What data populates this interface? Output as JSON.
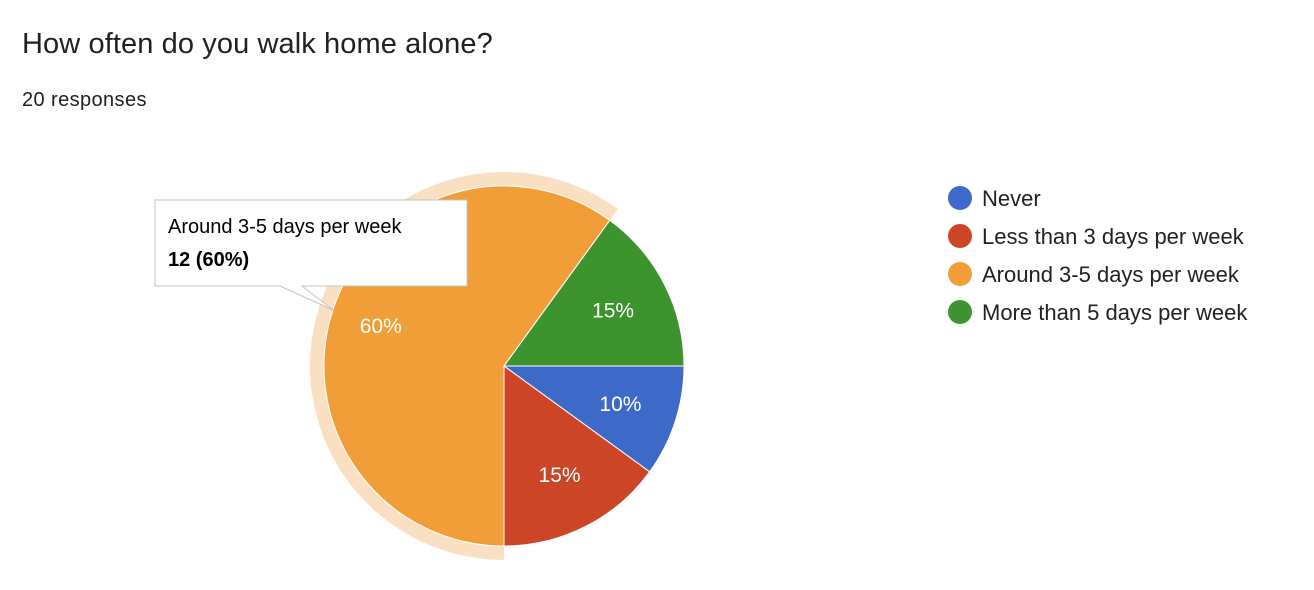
{
  "header": {
    "title": "How often do you walk home alone?",
    "responses": "20 responses"
  },
  "chart_data": {
    "type": "pie",
    "categories": [
      "Never",
      "Less than 3 days per week",
      "Around 3-5 days per week",
      "More than 5 days per week"
    ],
    "values": [
      2,
      3,
      12,
      3
    ],
    "percent_labels": [
      "10%",
      "15%",
      "60%",
      "15%"
    ],
    "colors": [
      "#3d6ac9",
      "#cc4527",
      "#f19e38",
      "#3d932e"
    ],
    "highlight_color": "#fae0c3",
    "legend_position": "right",
    "highlighted_index": 2,
    "tooltip": {
      "label": "Around 3-5 days per week",
      "value": "12 (60%)"
    }
  }
}
